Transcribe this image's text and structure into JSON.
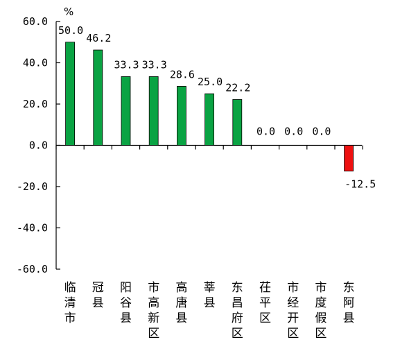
{
  "chart_data": {
    "type": "bar",
    "unit": "%",
    "categories": [
      "临清市",
      "冠县",
      "阳谷县",
      "市高新区",
      "高唐县",
      "莘县",
      "东昌府区",
      "茌平区",
      "市经开区",
      "市度假区",
      "东阿县"
    ],
    "values": [
      50.0,
      46.2,
      33.3,
      33.3,
      28.6,
      25.0,
      22.2,
      0.0,
      0.0,
      0.0,
      -12.5
    ],
    "data_labels": [
      "50.0",
      "46.2",
      "33.3",
      "33.3",
      "28.6",
      "25.0",
      "22.2",
      "0.0",
      "0.0",
      "0.0",
      "-12.5"
    ],
    "ylim": [
      -60,
      60
    ],
    "yticks": [
      60,
      40,
      20,
      0,
      -20,
      -40,
      -60
    ],
    "ytick_labels": [
      "60.0",
      "40.0",
      "20.0",
      "0.0",
      "-20.0",
      "-40.0",
      "-60.0"
    ],
    "title": "",
    "xlabel": "",
    "ylabel": "",
    "grid": false,
    "colors": {
      "positive": "#0aa343",
      "negative": "#ee1111",
      "bar_edge": "#000000"
    }
  }
}
